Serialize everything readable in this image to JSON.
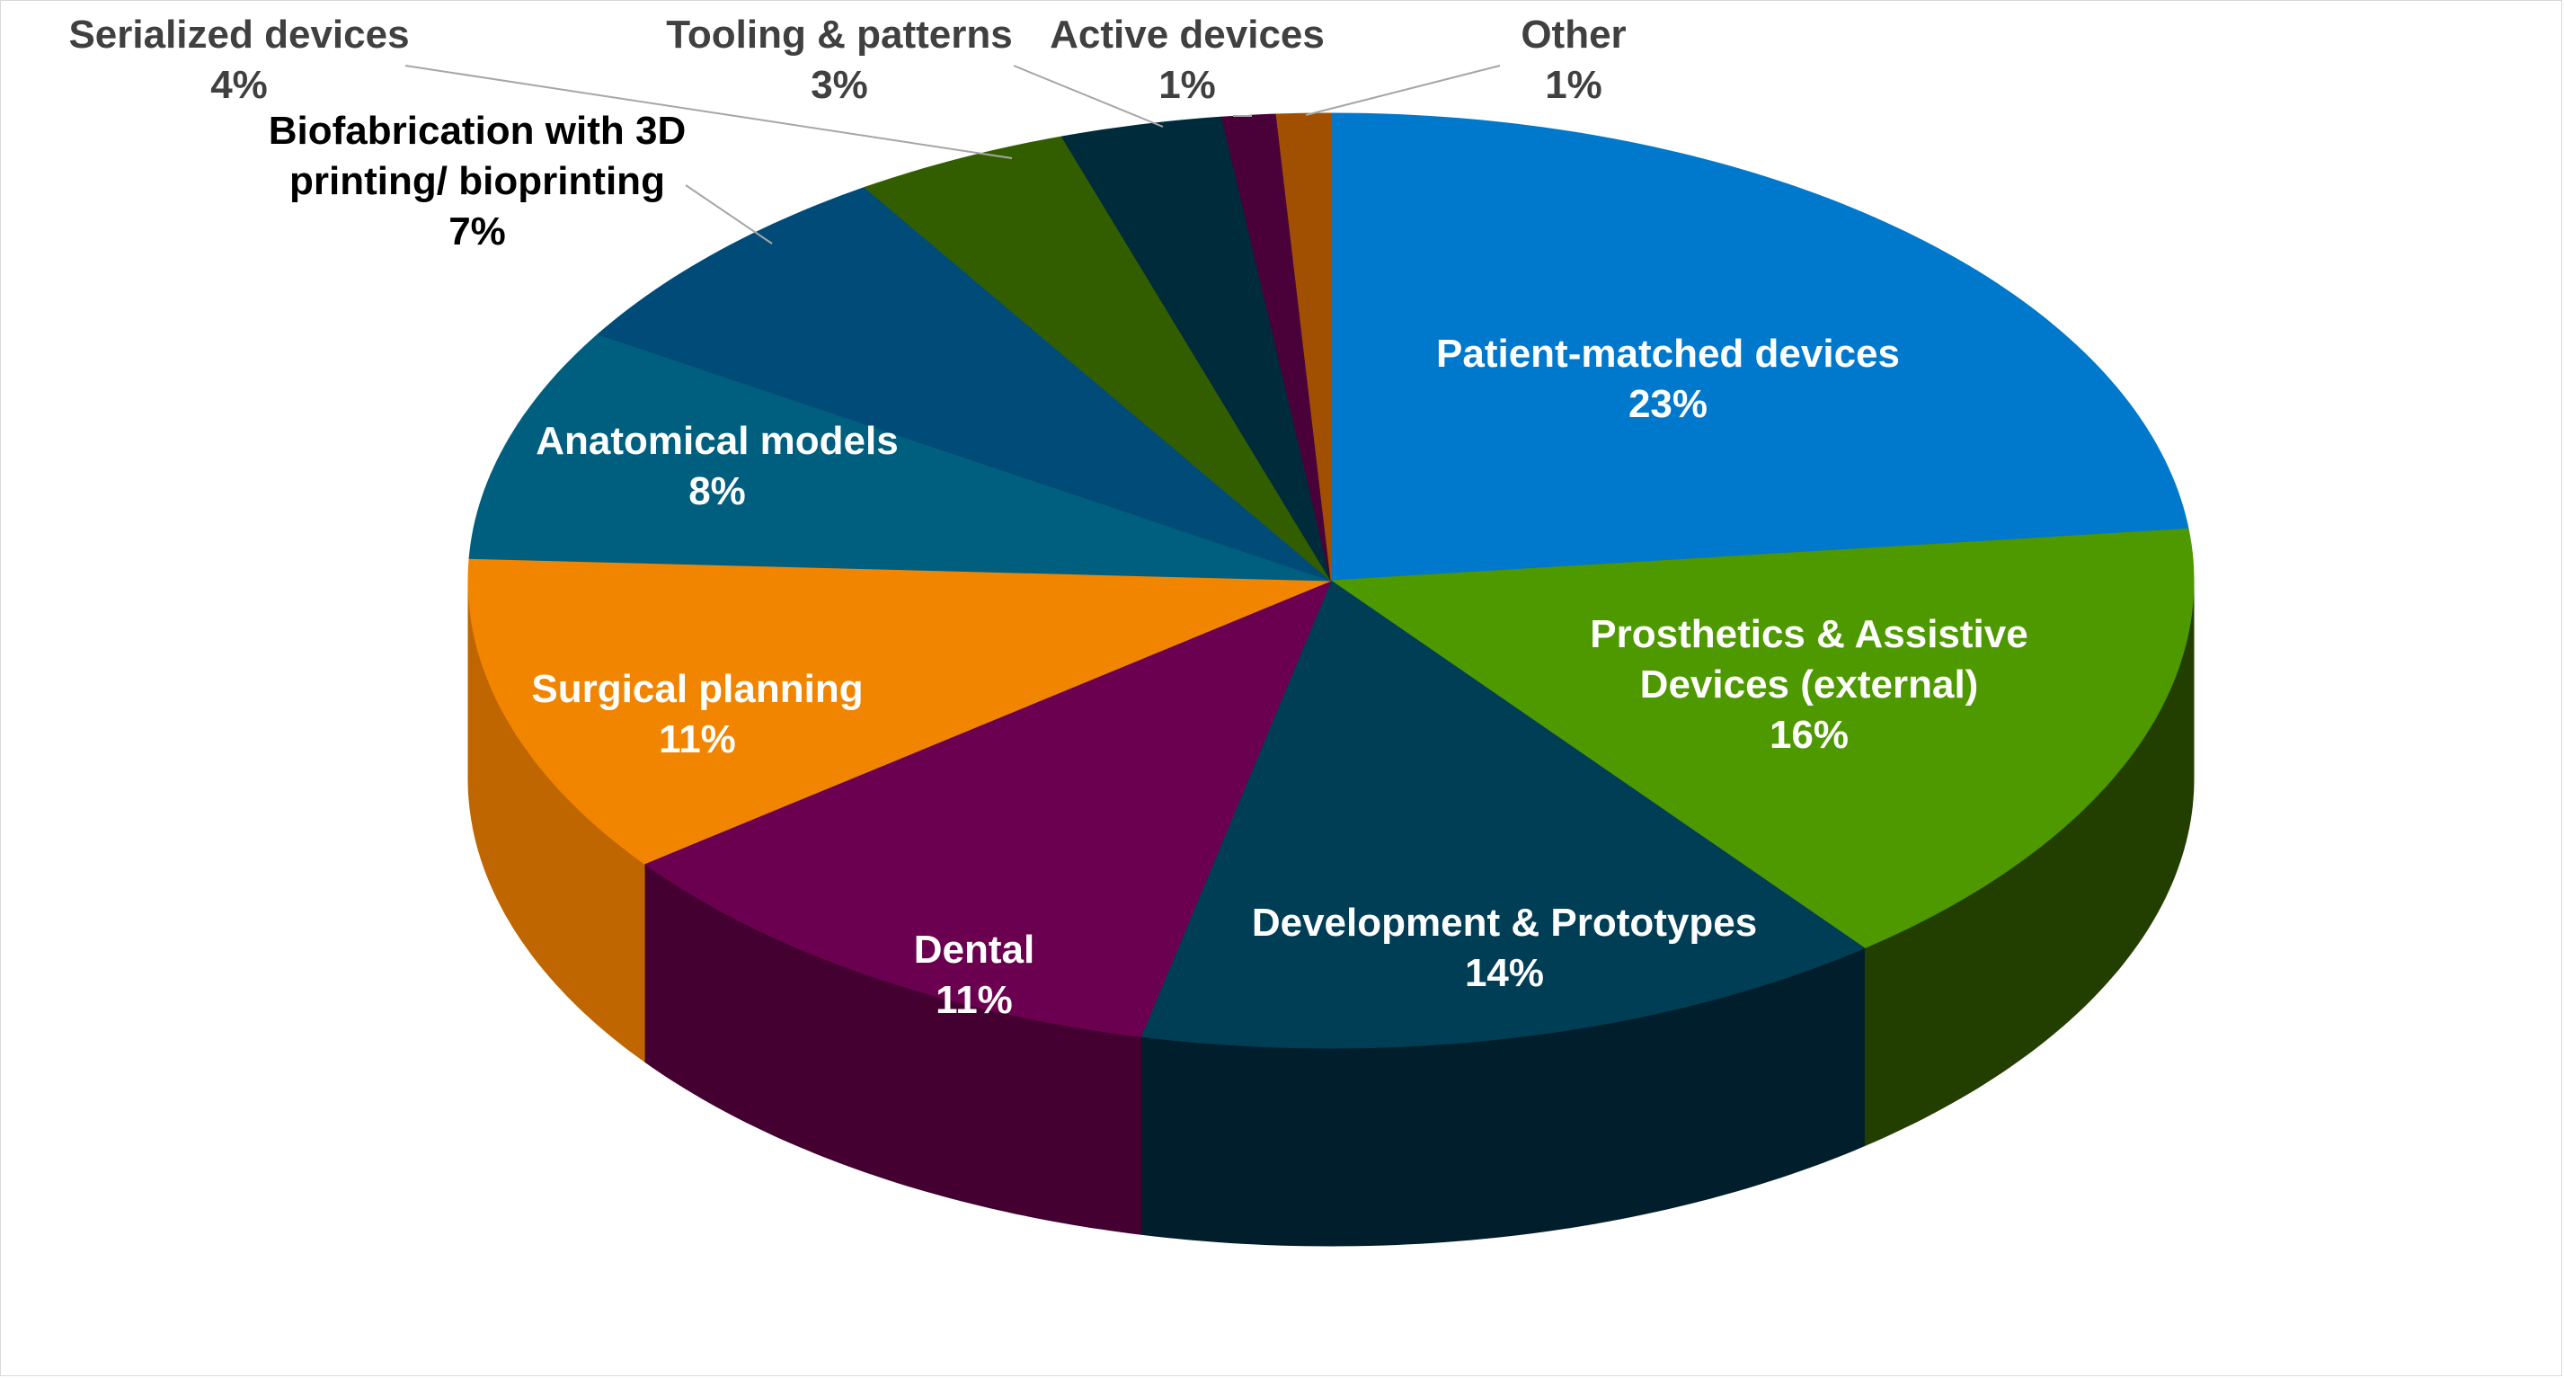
{
  "chart_data": {
    "type": "pie",
    "title": "",
    "show_percent_labels": true,
    "slices": [
      {
        "label": "Patient-matched devices",
        "value": 23,
        "percent_label": "23%",
        "color": "#0078CC",
        "side_color": "#00578F",
        "label_color": "#FFFFFF"
      },
      {
        "label": "Prosthetics & Assistive Devices (external)",
        "value": 16,
        "percent_label": "16%",
        "color": "#4E9800",
        "side_color": "#233F00",
        "label_color": "#FFFFFF"
      },
      {
        "label": "Development & Prototypes",
        "value": 14,
        "percent_label": "14%",
        "color": "#003E55",
        "side_color": "#001E2B",
        "label_color": "#FFFFFF"
      },
      {
        "label": "Dental",
        "value": 11,
        "percent_label": "11%",
        "color": "#6C0050",
        "side_color": "#430030",
        "label_color": "#FFFFFF"
      },
      {
        "label": "Surgical planning",
        "value": 11,
        "percent_label": "11%",
        "color": "#F28500",
        "side_color": "#BF6600",
        "label_color": "#FFFFFF"
      },
      {
        "label": "Anatomical models",
        "value": 8,
        "percent_label": "8%",
        "color": "#005E7E",
        "side_color": "#003F55",
        "label_color": "#FFFFFF"
      },
      {
        "label": "Biofabrication with 3D printing/ bioprinting",
        "value": 7,
        "percent_label": "7%",
        "color": "#004B78",
        "side_color": "#002F4C",
        "label_color": "#000000"
      },
      {
        "label": "Serialized devices",
        "value": 4,
        "percent_label": "4%",
        "color": "#335E00",
        "side_color": "#1E3800",
        "label_color": "#404040"
      },
      {
        "label": "Tooling & patterns",
        "value": 3,
        "percent_label": "3%",
        "color": "#002B3A",
        "side_color": "#001820",
        "label_color": "#404040"
      },
      {
        "label": "Active devices",
        "value": 1,
        "percent_label": "1%",
        "color": "#4A0038",
        "side_color": "#2C0020",
        "label_color": "#404040"
      },
      {
        "label": "Other",
        "value": 1,
        "percent_label": "1%",
        "color": "#A05000",
        "side_color": "#703800",
        "label_color": "#404040"
      }
    ]
  }
}
